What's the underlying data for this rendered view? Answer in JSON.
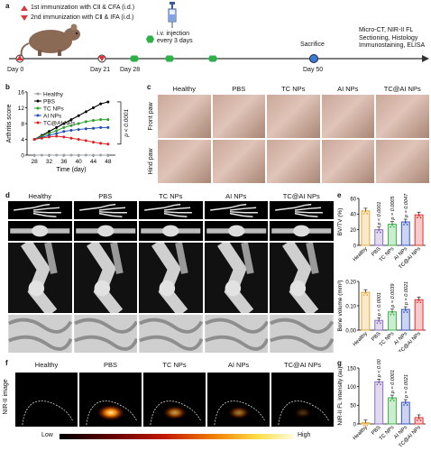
{
  "panel_a": {
    "letter": "a",
    "legend1": "1st immunization with CⅡ & CFA (i.d.)",
    "legend2": "2nd immunization with CⅡ & IFA (i.d.)",
    "injection": "i.v. injection\nevery 3 days",
    "sacrifice": "Sacrifice",
    "analysis": "Micro-CT, NIR-II FL\nSectioning, Histology\nImmunostaining, ELISA",
    "days": [
      "Day 0",
      "Day 21",
      "Day 28",
      "Day 50"
    ]
  },
  "panel_b": {
    "letter": "b",
    "chart_data": {
      "type": "line",
      "xlabel": "Time (day)",
      "ylabel": "Arthritis score",
      "xlim": [
        26,
        50
      ],
      "ylim": [
        0,
        16
      ],
      "xticks": [
        28,
        32,
        36,
        40,
        44,
        48
      ],
      "yticks": [
        0,
        4,
        8,
        12,
        16
      ],
      "x": [
        28,
        30,
        32,
        34,
        36,
        38,
        40,
        42,
        44,
        46,
        48
      ],
      "series": [
        {
          "name": "Healthy",
          "color": "#9aa0a6",
          "values": [
            0,
            0,
            0,
            0,
            0,
            0,
            0,
            0,
            0,
            0,
            0
          ]
        },
        {
          "name": "PBS",
          "color": "#000000",
          "values": [
            4,
            5,
            6,
            7,
            8,
            9,
            10,
            11,
            12,
            13,
            13.5
          ]
        },
        {
          "name": "TC NPs",
          "color": "#2ca02c",
          "values": [
            4,
            4.8,
            5.5,
            6.2,
            7,
            7.5,
            8,
            8.5,
            8.8,
            9,
            9
          ]
        },
        {
          "name": "AI NPs",
          "color": "#1f4fb4",
          "values": [
            4,
            4.5,
            5,
            5.5,
            6,
            6.3,
            6.5,
            6.7,
            6.8,
            7,
            7
          ]
        },
        {
          "name": "TC@AI NPs",
          "color": "#e02020",
          "values": [
            4,
            4.3,
            4.6,
            4.8,
            4.6,
            4.3,
            4,
            3.7,
            3.3,
            3,
            2.8
          ]
        }
      ],
      "annotation": "p < 0.0001"
    }
  },
  "panel_c": {
    "letter": "c",
    "cols": [
      "Healthy",
      "PBS",
      "TC NPs",
      "AI NPs",
      "TC@AI NPs"
    ],
    "rows": [
      "Front paw",
      "Hind paw"
    ]
  },
  "panel_d": {
    "letter": "d",
    "cols": [
      "Healthy",
      "PBS",
      "TC NPs",
      "AI NPs",
      "TC@AI NPs"
    ]
  },
  "panel_e1": {
    "letter": "e",
    "chart_data": {
      "type": "bar",
      "ylabel": "BV/TV (%)",
      "ylim": [
        0,
        60
      ],
      "yticks": [
        0,
        20,
        40,
        60
      ],
      "categories": [
        "Healthy",
        "PBS",
        "TC NPs",
        "AI NPs",
        "TC@AI NPs"
      ],
      "values": [
        44,
        20,
        27,
        30,
        39
      ],
      "colors": [
        "#e8a838",
        "#8a6fc0",
        "#3cb44b",
        "#3355cc",
        "#e03030"
      ],
      "pvalues": [
        "",
        "p < 0.0001",
        "p = 0.0005",
        "p = 0.0047",
        ""
      ]
    }
  },
  "panel_e2": {
    "chart_data": {
      "type": "bar",
      "ylabel": "Bone volume (mm³)",
      "ylim": [
        0,
        0.2
      ],
      "yticks": [
        0,
        0.1,
        0.2
      ],
      "yticklabels": [
        "0.00",
        "0.10",
        "0.20"
      ],
      "categories": [
        "Healthy",
        "PBS",
        "TC NPs",
        "AI NPs",
        "TC@AI NPs"
      ],
      "values": [
        0.155,
        0.04,
        0.075,
        0.085,
        0.125
      ],
      "colors": [
        "#e8a838",
        "#8a6fc0",
        "#3cb44b",
        "#3355cc",
        "#e03030"
      ],
      "pvalues": [
        "",
        "p < 0.0001",
        "p = 0.0039",
        "p = 0.0021",
        ""
      ]
    }
  },
  "panel_f": {
    "letter": "f",
    "row_label": "NIR-II image",
    "cols": [
      "Healthy",
      "PBS",
      "TC NPs",
      "AI NPs",
      "TC@AI NPs"
    ],
    "scale_low": "Low",
    "scale_high": "High"
  },
  "panel_g": {
    "letter": "g",
    "chart_data": {
      "type": "bar",
      "ylabel": "NIR-II FL intensity (au)",
      "ylim": [
        0,
        150
      ],
      "yticks": [
        0,
        50,
        100,
        150
      ],
      "categories": [
        "Healthy",
        "PBS",
        "TC NPs",
        "AI NPs",
        "TC@AI NPs"
      ],
      "values": [
        3,
        113,
        70,
        58,
        17
      ],
      "colors": [
        "#e8a838",
        "#8a6fc0",
        "#3cb44b",
        "#3355cc",
        "#e03030"
      ],
      "pvalues": [
        "",
        "p < 0.0001",
        "p = 0.0001",
        "p = 0.0021",
        ""
      ]
    }
  }
}
